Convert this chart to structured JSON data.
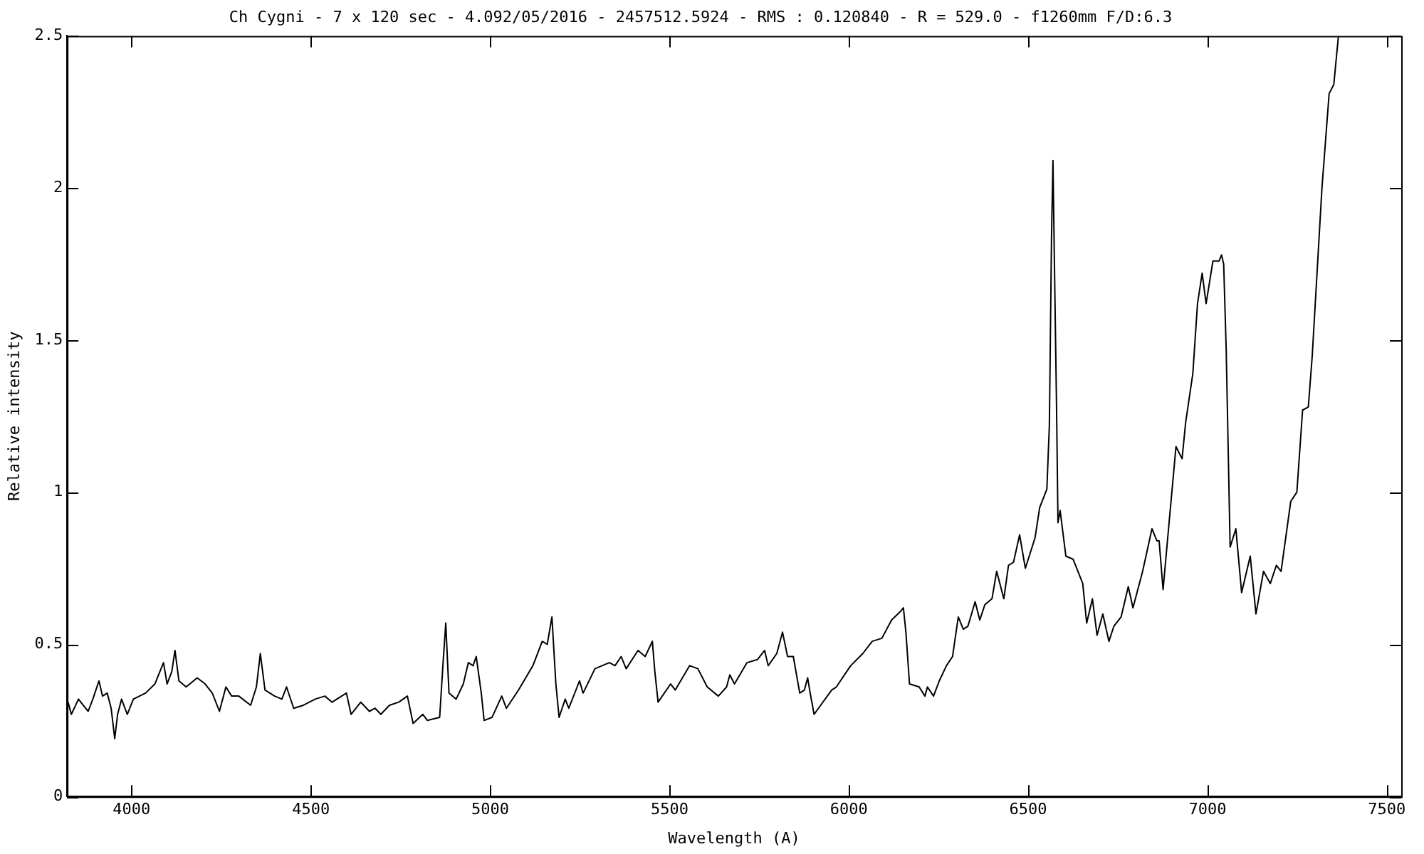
{
  "chart_data": {
    "type": "line",
    "title": "Ch Cygni - 7 x 120 sec - 4.092/05/2016 - 2457512.5924 - RMS : 0.120840 - R = 529.0 - f1260mm F/D:6.3",
    "xlabel": "Wavelength (A)",
    "ylabel": "Relative intensity",
    "xlim": [
      3820,
      7540
    ],
    "ylim": [
      0,
      2.5
    ],
    "xticks": [
      4000,
      4500,
      5000,
      5500,
      6000,
      6500,
      7000,
      7500
    ],
    "yticks": [
      0,
      0.5,
      1,
      1.5,
      2,
      2.5
    ],
    "grid": false,
    "legend": false,
    "marker": "none",
    "line_style": "solid",
    "series": [
      {
        "color": "#000000",
        "x": [
          3823,
          3832,
          3852,
          3865,
          3879,
          3892,
          3909,
          3919,
          3932,
          3943,
          3953,
          3961,
          3972,
          3988,
          4005,
          4039,
          4065,
          4089,
          4099,
          4112,
          4121,
          4132,
          4152,
          4183,
          4205,
          4225,
          4245,
          4263,
          4279,
          4299,
          4332,
          4348,
          4359,
          4372,
          4399,
          4419,
          4432,
          4452,
          4479,
          4512,
          4539,
          4559,
          4599,
          4612,
          4639,
          4663,
          4679,
          4695,
          4719,
          4745,
          4769,
          4785,
          4812,
          4825,
          4859,
          4868,
          4876,
          4885,
          4905,
          4925,
          4939,
          4952,
          4961,
          4975,
          4983,
          5005,
          5032,
          5045,
          5079,
          5119,
          5145,
          5159,
          5172,
          5183,
          5192,
          5209,
          5219,
          5249,
          5259,
          5292,
          5332,
          5348,
          5365,
          5379,
          5412,
          5432,
          5452,
          5459,
          5468,
          5503,
          5516,
          5556,
          5579,
          5605,
          5636,
          5659,
          5668,
          5681,
          5716,
          5745,
          5765,
          5775,
          5799,
          5815,
          5829,
          5845,
          5863,
          5876,
          5885,
          5892,
          5903,
          5952,
          5965,
          6005,
          6039,
          6065,
          6092,
          6119,
          6145,
          6152,
          6159,
          6169,
          6196,
          6212,
          6219,
          6236,
          6252,
          6272,
          6289,
          6305,
          6319,
          6332,
          6352,
          6365,
          6379,
          6399,
          6412,
          6432,
          6445,
          6459,
          6476,
          6492,
          6519,
          6532,
          6552,
          6559,
          6565,
          6569,
          6572,
          6579,
          6583,
          6589,
          6605,
          6625,
          6652,
          6663,
          6679,
          6692,
          6708,
          6725,
          6739,
          6759,
          6779,
          6792,
          6819,
          6845,
          6859,
          6865,
          6876,
          6892,
          6912,
          6929,
          6939,
          6959,
          6972,
          6985,
          6996,
          7015,
          7032,
          7039,
          7045,
          7052,
          7063,
          7079,
          7095,
          7119,
          7135,
          7156,
          7175,
          7192,
          7205,
          7232,
          7249,
          7265,
          7281,
          7292,
          7319,
          7339,
          7352,
          7365
        ],
        "values": [
          0.31,
          0.27,
          0.32,
          0.3,
          0.28,
          0.32,
          0.38,
          0.33,
          0.34,
          0.29,
          0.19,
          0.27,
          0.32,
          0.27,
          0.32,
          0.34,
          0.37,
          0.44,
          0.37,
          0.41,
          0.48,
          0.38,
          0.36,
          0.39,
          0.37,
          0.34,
          0.28,
          0.36,
          0.33,
          0.33,
          0.3,
          0.36,
          0.47,
          0.35,
          0.33,
          0.32,
          0.36,
          0.29,
          0.3,
          0.32,
          0.33,
          0.31,
          0.34,
          0.27,
          0.31,
          0.28,
          0.29,
          0.27,
          0.3,
          0.31,
          0.33,
          0.24,
          0.27,
          0.25,
          0.26,
          0.43,
          0.57,
          0.34,
          0.32,
          0.37,
          0.44,
          0.43,
          0.46,
          0.34,
          0.25,
          0.26,
          0.33,
          0.29,
          0.35,
          0.43,
          0.51,
          0.5,
          0.59,
          0.37,
          0.26,
          0.32,
          0.29,
          0.38,
          0.34,
          0.42,
          0.44,
          0.43,
          0.46,
          0.42,
          0.48,
          0.46,
          0.51,
          0.41,
          0.31,
          0.37,
          0.35,
          0.43,
          0.42,
          0.36,
          0.33,
          0.36,
          0.4,
          0.37,
          0.44,
          0.45,
          0.48,
          0.43,
          0.47,
          0.54,
          0.46,
          0.46,
          0.34,
          0.35,
          0.39,
          0.34,
          0.27,
          0.35,
          0.36,
          0.43,
          0.47,
          0.51,
          0.52,
          0.58,
          0.61,
          0.62,
          0.54,
          0.37,
          0.36,
          0.33,
          0.36,
          0.33,
          0.38,
          0.43,
          0.46,
          0.59,
          0.55,
          0.56,
          0.64,
          0.58,
          0.63,
          0.65,
          0.74,
          0.65,
          0.76,
          0.77,
          0.86,
          0.75,
          0.85,
          0.95,
          1.01,
          1.22,
          1.84,
          2.09,
          1.84,
          1.28,
          0.9,
          0.94,
          0.79,
          0.78,
          0.7,
          0.57,
          0.65,
          0.53,
          0.6,
          0.51,
          0.56,
          0.59,
          0.69,
          0.62,
          0.74,
          0.88,
          0.84,
          0.84,
          0.68,
          0.89,
          1.15,
          1.11,
          1.23,
          1.39,
          1.62,
          1.72,
          1.62,
          1.76,
          1.76,
          1.78,
          1.75,
          1.47,
          0.82,
          0.88,
          0.67,
          0.79,
          0.6,
          0.74,
          0.7,
          0.76,
          0.74,
          0.97,
          1.0,
          1.27,
          1.28,
          1.45,
          2.0,
          2.31,
          2.34,
          2.5
        ]
      }
    ]
  }
}
